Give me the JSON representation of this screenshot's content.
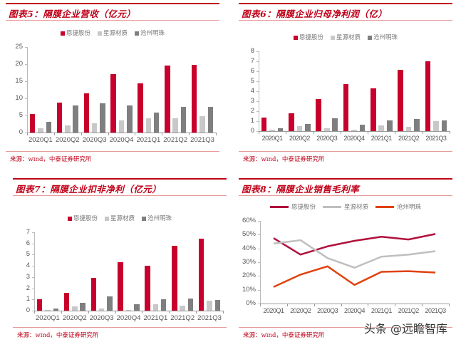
{
  "colors": {
    "accent": "#c00018",
    "series1": "#c8002c",
    "series2": "#c8c8c8",
    "series3": "#7f7f7f",
    "line1": "#b0103c",
    "line2": "#bfbfbf",
    "line3": "#e0420e"
  },
  "source_text": "来源：wind，中泰证券研究所",
  "watermark": "头条 @远瞻智库",
  "chart_data": [
    {
      "type": "bar",
      "title": "图表5：隔膜企业营收（亿元）",
      "categories": [
        "2020Q1",
        "2020Q2",
        "2020Q3",
        "2020Q4",
        "2021Q1",
        "2021Q2",
        "2021Q3"
      ],
      "series": [
        {
          "name": "恩捷股份",
          "values": [
            5.5,
            8.8,
            11.4,
            17.0,
            14.4,
            19.5,
            19.8
          ]
        },
        {
          "name": "星源材质",
          "values": [
            1.2,
            2.1,
            2.7,
            3.5,
            4.2,
            4.1,
            4.8
          ]
        },
        {
          "name": "沧州明珠",
          "values": [
            3.1,
            8.0,
            8.5,
            7.9,
            5.8,
            7.6,
            7.5
          ]
        }
      ],
      "yticks": [
        "0",
        "5",
        "10",
        "15",
        "20",
        "25"
      ],
      "ylim": [
        0,
        25
      ],
      "xlabel": "",
      "ylabel": "",
      "legend_position": "top",
      "grid": false
    },
    {
      "type": "bar",
      "title": "图表6：隔膜企业归母净利润（亿）",
      "categories": [
        "2020Q1",
        "2020Q2",
        "2020Q3",
        "2020Q4",
        "2021Q1",
        "2021Q2",
        "2021Q3"
      ],
      "series": [
        {
          "name": "恩捷股份",
          "values": [
            1.35,
            1.8,
            3.2,
            4.7,
            4.3,
            6.15,
            7.0
          ]
        },
        {
          "name": "星源材质",
          "values": [
            0.15,
            0.5,
            0.3,
            0.15,
            0.6,
            0.45,
            1.0
          ]
        },
        {
          "name": "沧州明珠",
          "values": [
            0.28,
            0.72,
            1.32,
            0.62,
            1.08,
            1.2,
            1.07
          ]
        }
      ],
      "yticks": [
        "0",
        "1",
        "2",
        "3",
        "4",
        "5",
        "6",
        "7",
        "8"
      ],
      "ylim": [
        0,
        8
      ],
      "xlabel": "",
      "ylabel": "",
      "legend_position": "top",
      "grid": false
    },
    {
      "type": "bar",
      "title": "图表7：隔膜企业扣非净利（亿元）",
      "categories": [
        "2020Q1",
        "2020Q2",
        "2020Q3",
        "2020Q4",
        "2021Q1",
        "2021Q2",
        "2021Q3"
      ],
      "series": [
        {
          "name": "恩捷股份",
          "values": [
            1.0,
            1.6,
            2.9,
            4.3,
            4.0,
            5.8,
            6.45
          ]
        },
        {
          "name": "星源材质",
          "values": [
            0.07,
            0.4,
            0.22,
            0.05,
            0.55,
            0.47,
            0.88
          ]
        },
        {
          "name": "沧州明珠",
          "values": [
            0.17,
            0.7,
            1.3,
            0.55,
            1.03,
            1.1,
            0.98
          ]
        }
      ],
      "yticks": [
        "0",
        "1",
        "2",
        "3",
        "4",
        "5",
        "6",
        "7"
      ],
      "ylim": [
        0,
        7
      ],
      "xlabel": "",
      "ylabel": "",
      "legend_position": "top",
      "grid": false
    },
    {
      "type": "line",
      "title": "图表8：隔膜企业销售毛利率",
      "categories": [
        "2020Q1",
        "2020Q2",
        "2020Q3",
        "2020Q4",
        "2021Q1",
        "2021Q2",
        "2021Q3"
      ],
      "series": [
        {
          "name": "恩捷股份",
          "values": [
            47.5,
            35.5,
            41.5,
            45.5,
            48.5,
            46.5,
            50.5
          ]
        },
        {
          "name": "星源材质",
          "values": [
            43.5,
            46.0,
            33.0,
            26.0,
            34.0,
            35.5,
            38.0
          ]
        },
        {
          "name": "沧州明珠",
          "values": [
            12.0,
            21.0,
            27.0,
            13.5,
            23.0,
            23.5,
            22.5
          ]
        }
      ],
      "yticks": [
        "0%",
        "10%",
        "20%",
        "30%",
        "40%",
        "50%",
        "60%"
      ],
      "ylim": [
        0,
        60
      ],
      "xlabel": "",
      "ylabel": "",
      "legend_position": "top",
      "grid": false
    }
  ]
}
